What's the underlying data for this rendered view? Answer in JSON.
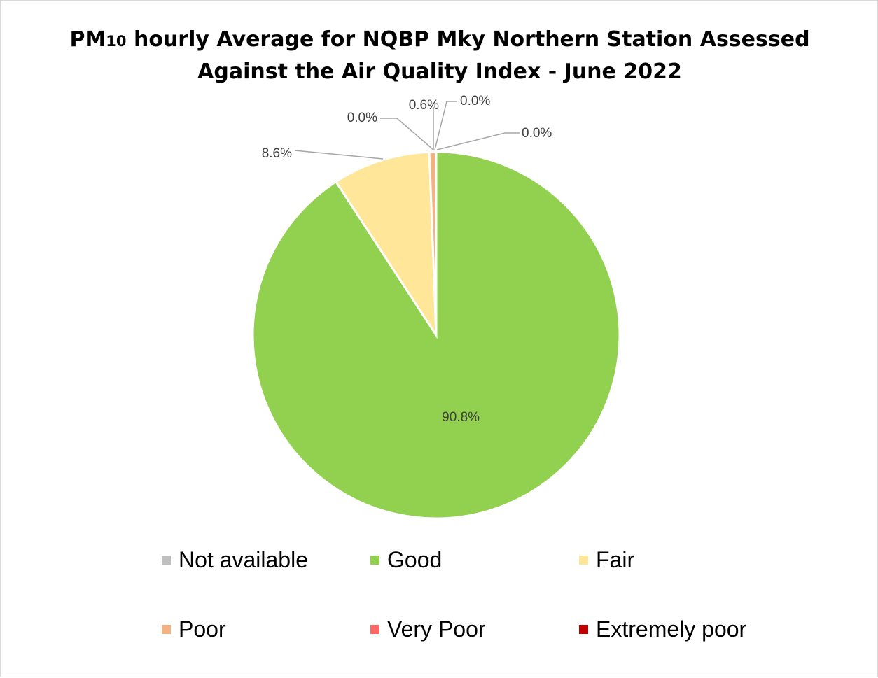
{
  "chart_data": {
    "type": "pie",
    "title_parts": [
      "PM",
      "10",
      " hourly Average for NQBP Mky Northern Station Assessed"
    ],
    "title_line2": "Against the Air Quality Index - June 2022",
    "categories": [
      "Not available",
      "Good",
      "Fair",
      "Poor",
      "Very Poor",
      "Extremely poor"
    ],
    "values": [
      0.0,
      90.8,
      8.6,
      0.6,
      0.0,
      0.0
    ],
    "data_labels": [
      "0.0%",
      "90.8%",
      "8.6%",
      "0.6%",
      "0.0%",
      "0.0%"
    ],
    "colors": [
      "#bfbfbf",
      "#92d050",
      "#ffe699",
      "#f4b183",
      "#ff6666",
      "#c00000"
    ],
    "legend_position": "bottom",
    "start_angle_deg": 0,
    "direction": "clockwise"
  }
}
